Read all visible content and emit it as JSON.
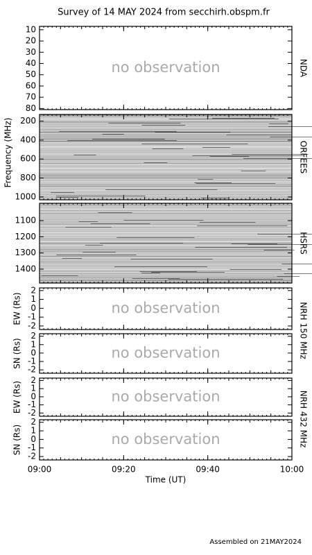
{
  "title": "Survey of 14 MAY 2024 from secchirh.obspm.fr",
  "footer": "Assembled on 21MAY2024",
  "xlabel": "Time (UT)",
  "xlim": [
    "09:00",
    "10:00"
  ],
  "xticks": [
    "09:00",
    "09:20",
    "09:40",
    "10:00"
  ],
  "frequency_label": "Frequency (MHz)",
  "chart_data": [
    {
      "type": "heatmap",
      "right_label": "NDA",
      "annotation": "no observation",
      "ylim": [
        7,
        81
      ],
      "reverse": true,
      "yticks": [
        10,
        20,
        30,
        40,
        50,
        60,
        70,
        80
      ]
    },
    {
      "type": "heatmap",
      "right_label": "ORFEES",
      "ylim": [
        130,
        1030
      ],
      "reverse": true,
      "yticks": [
        200,
        400,
        600,
        800,
        1000
      ]
    },
    {
      "type": "heatmap",
      "right_label": "HSRS",
      "ylim": [
        993,
        1486
      ],
      "reverse": true,
      "yticks": [
        1100,
        1200,
        1300,
        1400
      ]
    },
    {
      "type": "line",
      "right_label": "NRH 150 MHz",
      "ylabel": "EW (Rs)",
      "annotation": "no observation",
      "ylim": [
        -2.4,
        2.3
      ],
      "yticks": [
        -2,
        -1,
        0,
        1,
        2
      ]
    },
    {
      "type": "line",
      "ylabel": "SN (Rs)",
      "annotation": "no observation",
      "ylim": [
        -2.4,
        2.3
      ],
      "yticks": [
        -2,
        -1,
        0,
        1,
        2
      ]
    },
    {
      "type": "line",
      "right_label": "NRH 432 MHz",
      "ylabel": "EW (Rs)",
      "annotation": "no observation",
      "ylim": [
        -2.4,
        2.3
      ],
      "yticks": [
        -2,
        -1,
        0,
        1,
        2
      ]
    },
    {
      "type": "line",
      "ylabel": "SN (Rs)",
      "annotation": "no observation",
      "ylim": [
        -2.4,
        2.3
      ],
      "yticks": [
        -2,
        -1,
        0,
        1,
        2
      ]
    }
  ]
}
